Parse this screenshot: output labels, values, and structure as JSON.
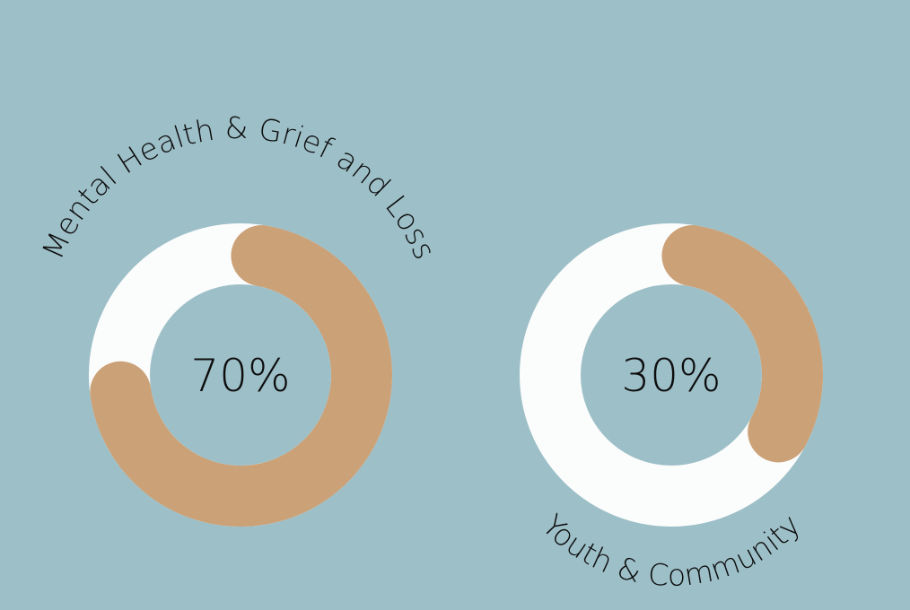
{
  "background_color": "#9dbfc8",
  "track_color": "#fbfcfc",
  "fill_color": "#cba177",
  "chart_data": [
    {
      "type": "donut",
      "name": "Mental Health & Grief and Loss",
      "value": 70,
      "unit": "%",
      "value_label": "70%",
      "label_position": "top"
    },
    {
      "type": "donut",
      "name": "Youth & Community",
      "value": 30,
      "unit": "%",
      "value_label": "30%",
      "label_position": "bottom"
    }
  ]
}
